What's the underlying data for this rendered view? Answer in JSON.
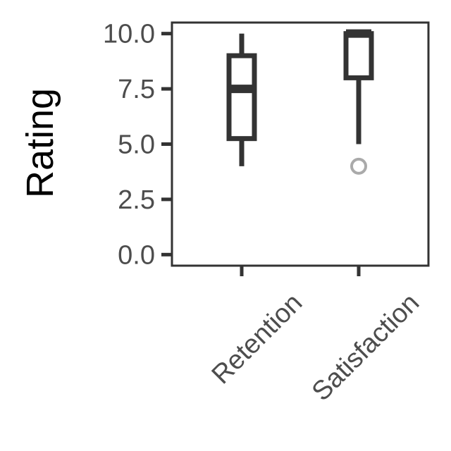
{
  "chart_data": {
    "type": "box",
    "title": "",
    "xlabel": "",
    "ylabel": "Rating",
    "ylim": [
      -0.5,
      10.5
    ],
    "y_ticks": [
      0.0,
      2.5,
      5.0,
      7.5,
      10.0
    ],
    "y_tick_labels": [
      "0.0",
      "2.5",
      "5.0",
      "7.5",
      "10.0"
    ],
    "categories": [
      "Retention",
      "Satisfaction"
    ],
    "boxes": [
      {
        "category": "Retention",
        "whisker_low": 4.0,
        "q1": 5.25,
        "median": 7.5,
        "q3": 9.0,
        "whisker_high": 10.0,
        "outliers": []
      },
      {
        "category": "Satisfaction",
        "whisker_low": 5.0,
        "q1": 8.0,
        "median": 10.0,
        "q3": 10.0,
        "whisker_high": 10.0,
        "outliers": [
          4.0
        ]
      }
    ],
    "grid": false,
    "colors": {
      "box": "#333333",
      "outlier": "#aaaaaa",
      "axis": "#333333",
      "tick_text": "#4d4d4d"
    }
  }
}
